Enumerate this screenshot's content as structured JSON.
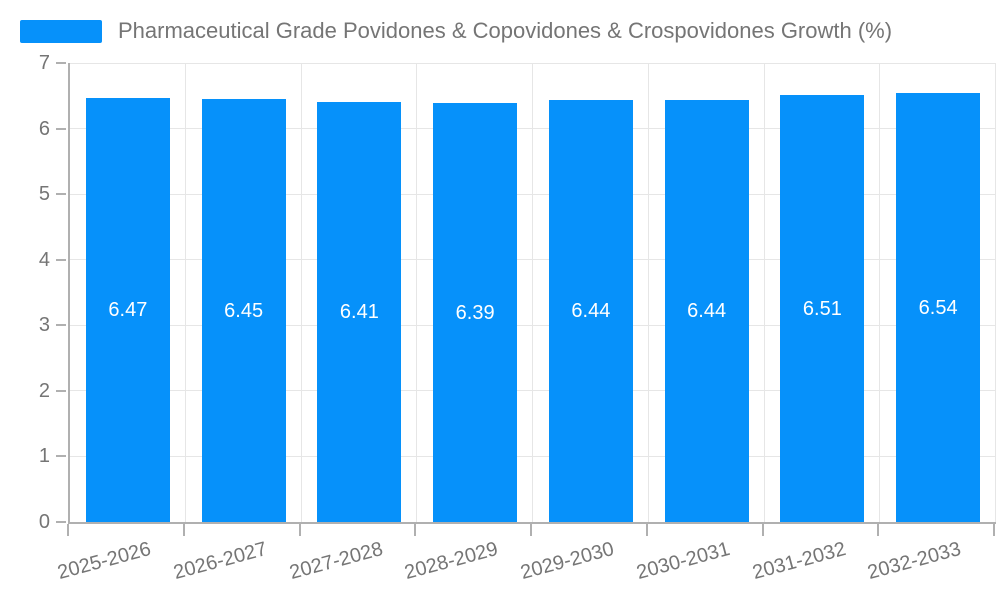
{
  "legend": {
    "label": "Pharmaceutical Grade Povidones & Copovidones & Crospovidones Growth (%)"
  },
  "chart_data": {
    "type": "bar",
    "title": "",
    "xlabel": "",
    "ylabel": "",
    "categories": [
      "2025-2026",
      "2026-2027",
      "2027-2028",
      "2028-2029",
      "2029-2030",
      "2030-2031",
      "2031-2032",
      "2032-2033"
    ],
    "series": [
      {
        "name": "Pharmaceutical Grade Povidones & Copovidones & Crospovidones Growth (%)",
        "values": [
          6.47,
          6.45,
          6.41,
          6.39,
          6.44,
          6.44,
          6.51,
          6.54
        ]
      }
    ],
    "value_labels": [
      "6.47",
      "6.45",
      "6.41",
      "6.39",
      "6.44",
      "6.44",
      "6.51",
      "6.54"
    ],
    "ylim": [
      0,
      7
    ],
    "yticks": [
      0,
      1,
      2,
      3,
      4,
      5,
      6,
      7
    ],
    "grid": true,
    "legend_position": "top-left",
    "x_label_rotation_deg": -15
  },
  "colors": {
    "bar": "#0691fa",
    "grid": "#e6e6e6",
    "axis": "#b0b0b0",
    "tick": "#b0b0b0",
    "axis_text": "#757575",
    "legend_text": "#757575",
    "bar_label_text": "#ffffff",
    "background": "#ffffff"
  }
}
